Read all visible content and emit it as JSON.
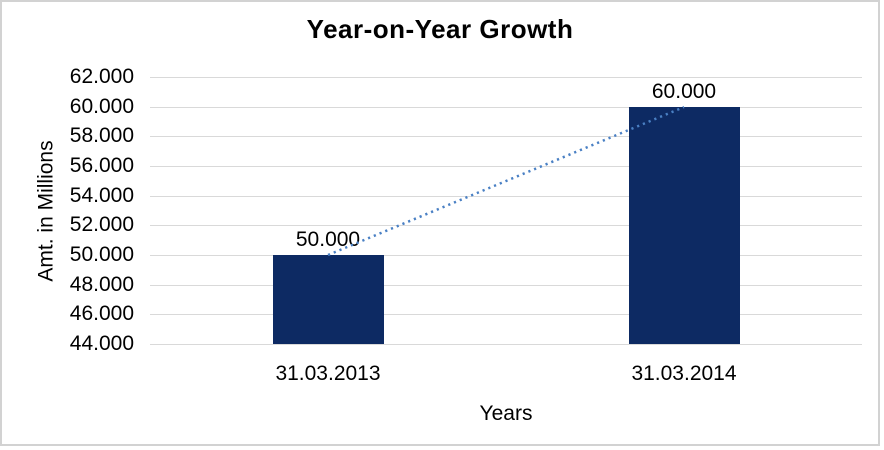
{
  "title": "Year-on-Year Growth",
  "colors": {
    "bar": "#0d2a63",
    "trendline": "#4a80c4",
    "gridline": "#d9d9d9",
    "frame_border": "#d2d2d2",
    "text": "#000000"
  },
  "chart_data": {
    "type": "bar",
    "title": "Year-on-Year Growth",
    "xlabel": "Years",
    "ylabel": "Amt. in Millions",
    "categories": [
      "31.03.2013",
      "31.03.2014"
    ],
    "values": [
      50000,
      60000
    ],
    "value_labels": [
      "50.000",
      "60.000"
    ],
    "ytick_labels": [
      "62.000",
      "60.000",
      "58.000",
      "56.000",
      "54.000",
      "52.000",
      "50.000",
      "48.000",
      "46.000",
      "44.000"
    ],
    "ylim": [
      44000,
      62000
    ],
    "grid": true,
    "legend": "none",
    "trendline": "dotted line connecting bar tops"
  }
}
